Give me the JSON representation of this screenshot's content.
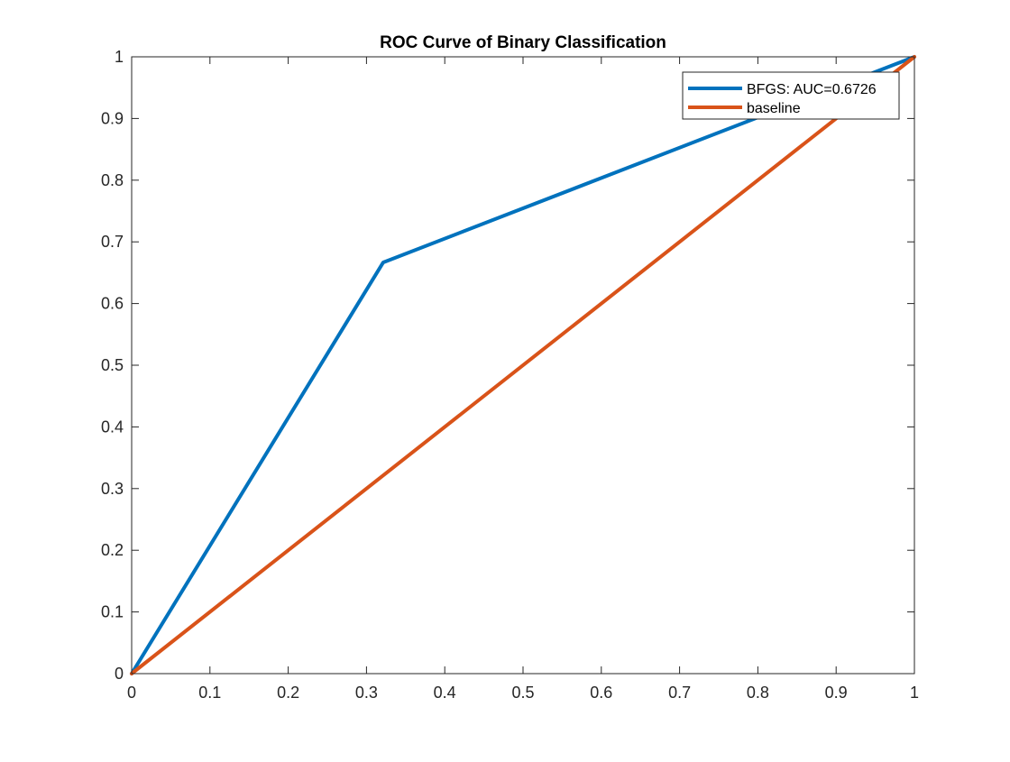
{
  "chart_data": {
    "type": "line",
    "title": "ROC Curve of Binary Classification",
    "xlabel": "",
    "ylabel": "",
    "xlim": [
      0,
      1
    ],
    "ylim": [
      0,
      1
    ],
    "xticks": [
      0,
      0.1,
      0.2,
      0.3,
      0.4,
      0.5,
      0.6,
      0.7,
      0.8,
      0.9,
      1
    ],
    "yticks": [
      0,
      0.1,
      0.2,
      0.3,
      0.4,
      0.5,
      0.6,
      0.7,
      0.8,
      0.9,
      1
    ],
    "xtick_labels": [
      "0",
      "0.1",
      "0.2",
      "0.3",
      "0.4",
      "0.5",
      "0.6",
      "0.7",
      "0.8",
      "0.9",
      "1"
    ],
    "ytick_labels": [
      "0",
      "0.1",
      "0.2",
      "0.3",
      "0.4",
      "0.5",
      "0.6",
      "0.7",
      "0.8",
      "0.9",
      "1"
    ],
    "grid": false,
    "legend_position": "top-right",
    "series": [
      {
        "name": "BFGS: AUC=0.6726",
        "color": "#0072BD",
        "x": [
          0,
          0.3214,
          1
        ],
        "y": [
          0,
          0.6667,
          1
        ]
      },
      {
        "name": "baseline",
        "color": "#D95319",
        "x": [
          0,
          1
        ],
        "y": [
          0,
          1
        ]
      }
    ]
  }
}
